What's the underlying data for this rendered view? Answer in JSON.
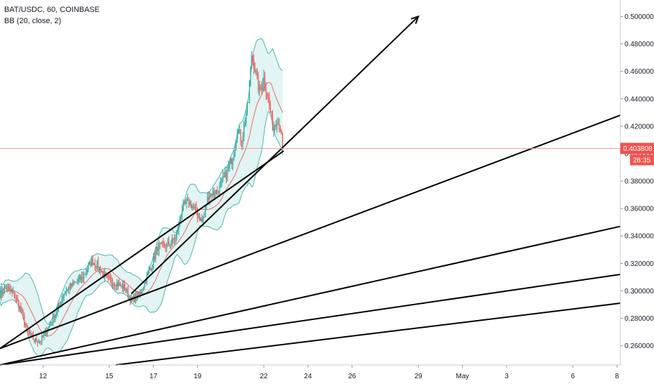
{
  "legend": {
    "symbol": "BAT/USDC, 60, COINBASE",
    "indicator": "BB (20, close, 2)"
  },
  "colors": {
    "up": "#26a69a",
    "down": "#ef5350",
    "band": "#4fb6b0",
    "band_fill": "#d6f0ee",
    "basis": "#e0706a",
    "price_line": "#f4a09c",
    "trend": "#000000",
    "last_price_bg": "#ef5350"
  },
  "chart_data": {
    "type": "candlestick",
    "ylim": [
      0.246,
      0.512
    ],
    "y_ticks": [
      "0.260000",
      "0.280000",
      "0.300000",
      "0.320000",
      "0.340000",
      "0.360000",
      "0.380000",
      "0.400000",
      "0.420000",
      "0.440000",
      "0.460000",
      "0.480000",
      "0.500000"
    ],
    "x_ticks": [
      "12",
      "15",
      "17",
      "19",
      "22",
      "24",
      "26",
      "29",
      "May",
      "3",
      "6",
      "8"
    ],
    "x_tick_days": [
      12,
      15,
      17,
      19,
      22,
      24,
      26,
      29,
      31,
      33,
      36,
      38
    ],
    "xlim_days": [
      10.05,
      38.15
    ],
    "last_price": {
      "value": 0.403808,
      "label": "0.403808",
      "countdown": "28:35"
    },
    "anchors": [
      {
        "t": 10.05,
        "p": 0.297
      },
      {
        "t": 10.3,
        "p": 0.303
      },
      {
        "t": 10.7,
        "p": 0.297
      },
      {
        "t": 11.0,
        "p": 0.286
      },
      {
        "t": 11.3,
        "p": 0.27
      },
      {
        "t": 11.6,
        "p": 0.264
      },
      {
        "t": 11.9,
        "p": 0.264
      },
      {
        "t": 12.2,
        "p": 0.272
      },
      {
        "t": 12.6,
        "p": 0.285
      },
      {
        "t": 13.0,
        "p": 0.3
      },
      {
        "t": 13.4,
        "p": 0.305
      },
      {
        "t": 13.8,
        "p": 0.31
      },
      {
        "t": 14.2,
        "p": 0.322
      },
      {
        "t": 14.5,
        "p": 0.318
      },
      {
        "t": 14.9,
        "p": 0.308
      },
      {
        "t": 15.3,
        "p": 0.306
      },
      {
        "t": 15.7,
        "p": 0.302
      },
      {
        "t": 16.0,
        "p": 0.293
      },
      {
        "t": 16.4,
        "p": 0.298
      },
      {
        "t": 16.8,
        "p": 0.314
      },
      {
        "t": 17.2,
        "p": 0.332
      },
      {
        "t": 17.6,
        "p": 0.333
      },
      {
        "t": 18.0,
        "p": 0.338
      },
      {
        "t": 18.3,
        "p": 0.36
      },
      {
        "t": 18.6,
        "p": 0.365
      },
      {
        "t": 19.0,
        "p": 0.356
      },
      {
        "t": 19.2,
        "p": 0.35
      },
      {
        "t": 19.5,
        "p": 0.37
      },
      {
        "t": 19.9,
        "p": 0.373
      },
      {
        "t": 20.3,
        "p": 0.385
      },
      {
        "t": 20.6,
        "p": 0.398
      },
      {
        "t": 20.8,
        "p": 0.418
      },
      {
        "t": 21.0,
        "p": 0.41
      },
      {
        "t": 21.3,
        "p": 0.438
      },
      {
        "t": 21.45,
        "p": 0.472
      },
      {
        "t": 21.6,
        "p": 0.462
      },
      {
        "t": 21.8,
        "p": 0.445
      },
      {
        "t": 22.0,
        "p": 0.455
      },
      {
        "t": 22.2,
        "p": 0.44
      },
      {
        "t": 22.4,
        "p": 0.42
      },
      {
        "t": 22.6,
        "p": 0.425
      },
      {
        "t": 22.75,
        "p": 0.418
      },
      {
        "t": 22.85,
        "p": 0.404
      }
    ],
    "trendlines": [
      {
        "t1": 10.05,
        "p1": 0.258,
        "t2": 22.9,
        "p2": 0.402,
        "arrow": false
      },
      {
        "t1": 16.0,
        "p1": 0.298,
        "t2": 29.0,
        "p2": 0.5,
        "arrow": true
      },
      {
        "t1": 10.05,
        "p1": 0.258,
        "t2": 38.15,
        "p2": 0.428,
        "arrow": false
      },
      {
        "t1": 10.05,
        "p1": 0.246,
        "t2": 38.15,
        "p2": 0.347,
        "arrow": false
      },
      {
        "t1": 10.05,
        "p1": 0.246,
        "t2": 38.15,
        "p2": 0.312,
        "arrow": false
      },
      {
        "t1": 15.3,
        "p1": 0.246,
        "t2": 38.15,
        "p2": 0.291,
        "arrow": false
      }
    ]
  }
}
